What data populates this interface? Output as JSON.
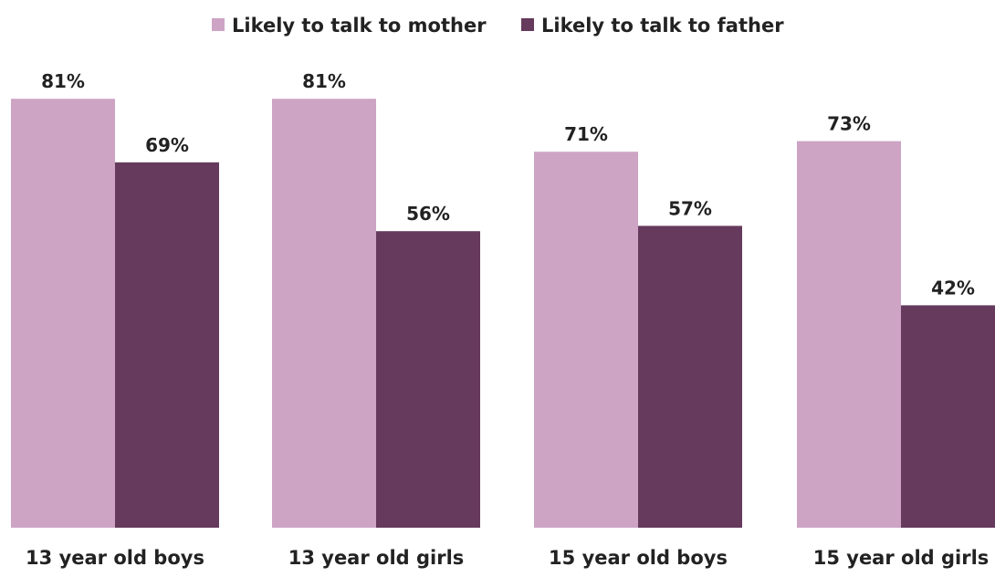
{
  "chart_data": {
    "type": "bar",
    "categories": [
      "13 year old boys",
      "13 year old girls",
      "15 year old boys",
      "15 year old girls"
    ],
    "series": [
      {
        "name": "Likely to talk to mother",
        "values": [
          81,
          81,
          71,
          73
        ],
        "labels": [
          "81%",
          "81%",
          "71%",
          "73%"
        ],
        "color": "#cda4c4"
      },
      {
        "name": "Likely to talk to father",
        "values": [
          69,
          56,
          57,
          42
        ],
        "labels": [
          "69%",
          "56%",
          "57%",
          "42%"
        ],
        "color": "#653a5c"
      }
    ],
    "title": "",
    "xlabel": "",
    "ylabel": "",
    "ylim": [
      0,
      100
    ],
    "unit": "%",
    "grid": false,
    "legend_position": "top"
  }
}
